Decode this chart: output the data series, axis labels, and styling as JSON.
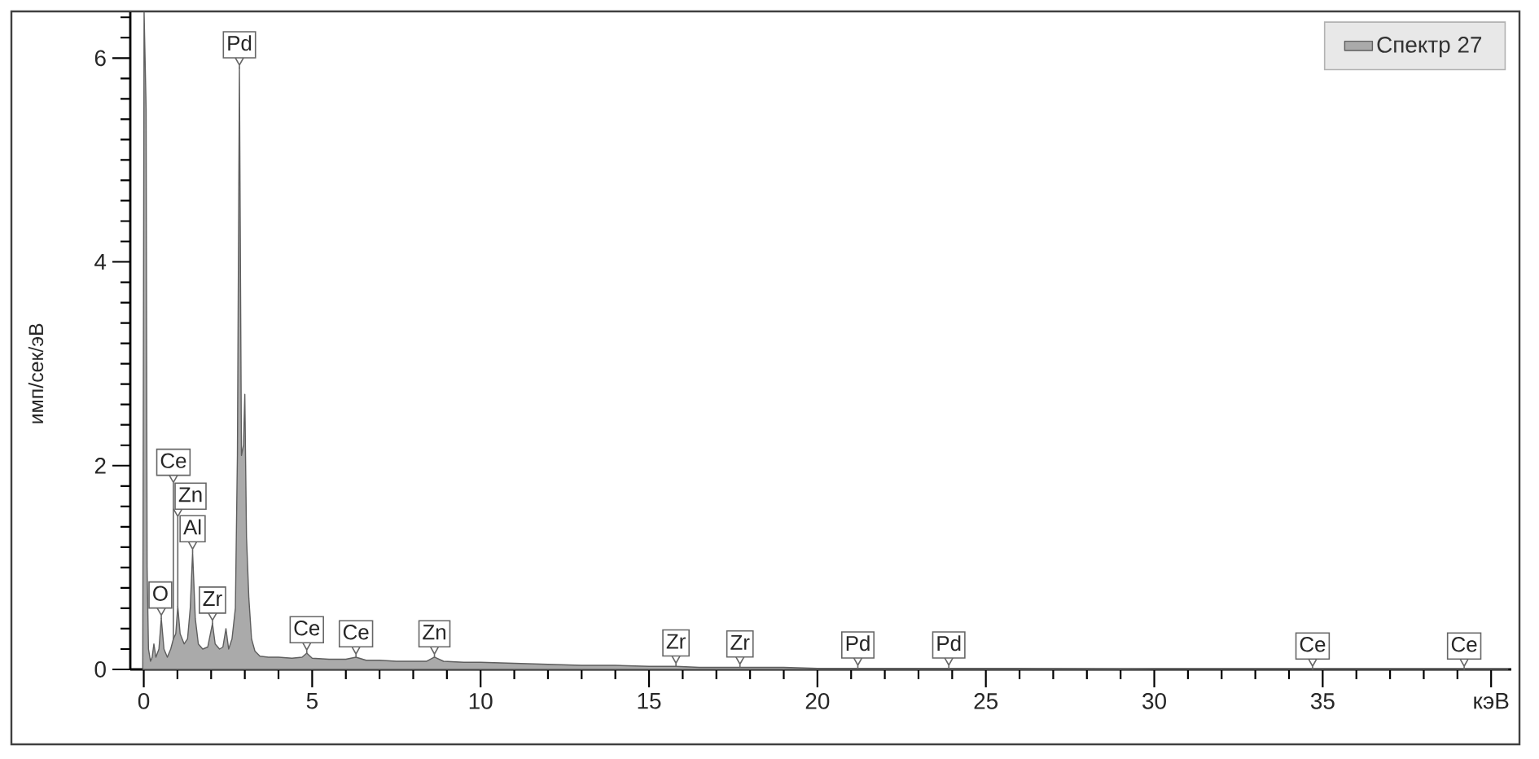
{
  "chart_data": {
    "type": "area",
    "ylabel": "имп/сек/эВ",
    "x": [
      -0.03,
      0.01,
      0.07,
      0.1,
      0.14,
      0.2,
      0.25,
      0.3,
      0.36,
      0.45,
      0.52,
      0.6,
      0.7,
      0.8,
      0.88,
      0.95,
      1.01,
      1.08,
      1.2,
      1.3,
      1.38,
      1.45,
      1.53,
      1.62,
      1.75,
      1.9,
      2.04,
      2.12,
      2.25,
      2.35,
      2.44,
      2.52,
      2.62,
      2.72,
      2.78,
      2.84,
      2.9,
      2.96,
      3.0,
      3.05,
      3.12,
      3.2,
      3.3,
      3.45,
      3.7,
      4.0,
      4.4,
      4.7,
      4.84,
      5.0,
      5.5,
      6.0,
      6.3,
      6.6,
      7.0,
      7.5,
      8.0,
      8.4,
      8.63,
      8.9,
      9.5,
      10,
      11,
      12,
      13,
      14,
      15,
      15.8,
      16.5,
      17.7,
      19,
      20,
      21.2,
      22,
      23.9,
      26,
      30,
      34.7,
      39.2,
      40.5
    ],
    "series": [
      {
        "name": "Спектр 27",
        "color": "#aaaaaa",
        "values": [
          0,
          6.45,
          5.5,
          1.0,
          0.2,
          0.08,
          0.12,
          0.25,
          0.12,
          0.2,
          0.5,
          0.2,
          0.12,
          0.2,
          0.3,
          0.35,
          0.62,
          0.35,
          0.25,
          0.3,
          0.6,
          1.15,
          0.5,
          0.25,
          0.2,
          0.22,
          0.45,
          0.25,
          0.2,
          0.22,
          0.4,
          0.2,
          0.3,
          0.6,
          2.1,
          5.9,
          2.1,
          2.2,
          2.7,
          1.3,
          0.7,
          0.3,
          0.18,
          0.13,
          0.12,
          0.12,
          0.11,
          0.12,
          0.16,
          0.11,
          0.1,
          0.1,
          0.12,
          0.09,
          0.09,
          0.08,
          0.08,
          0.08,
          0.12,
          0.08,
          0.07,
          0.07,
          0.06,
          0.05,
          0.04,
          0.04,
          0.03,
          0.03,
          0.02,
          0.02,
          0.02,
          0.01,
          0.01,
          0.01,
          0.01,
          0.01,
          0,
          0,
          0,
          0
        ]
      }
    ],
    "xlim": [
      -0.4,
      40.6
    ],
    "ylim": [
      0,
      6.45
    ],
    "xticks": [
      0,
      {
        "value": 1,
        "label": null
      },
      {
        "value": 2,
        "label": null
      },
      {
        "value": 3,
        "label": null
      },
      {
        "value": 4,
        "label": null
      },
      5,
      {
        "value": 6,
        "label": null
      },
      {
        "value": 7,
        "label": null
      },
      {
        "value": 8,
        "label": null
      },
      {
        "value": 9,
        "label": null
      },
      10,
      {
        "value": 11,
        "label": null
      },
      {
        "value": 12,
        "label": null
      },
      {
        "value": 13,
        "label": null
      },
      {
        "value": 14,
        "label": null
      },
      15,
      {
        "value": 16,
        "label": null
      },
      {
        "value": 17,
        "label": null
      },
      {
        "value": 18,
        "label": null
      },
      {
        "value": 19,
        "label": null
      },
      20,
      {
        "value": 21,
        "label": null
      },
      {
        "value": 22,
        "label": null
      },
      {
        "value": 23,
        "label": null
      },
      {
        "value": 24,
        "label": null
      },
      25,
      {
        "value": 26,
        "label": null
      },
      {
        "value": 27,
        "label": null
      },
      {
        "value": 28,
        "label": null
      },
      {
        "value": 29,
        "label": null
      },
      30,
      {
        "value": 31,
        "label": null
      },
      {
        "value": 32,
        "label": null
      },
      {
        "value": 33,
        "label": null
      },
      {
        "value": 34,
        "label": null
      },
      35,
      {
        "value": 36,
        "label": null
      },
      {
        "value": 37,
        "label": null
      },
      {
        "value": 38,
        "label": null
      },
      {
        "value": 39,
        "label": null
      },
      {
        "value": 40,
        "label": "кэВ"
      }
    ],
    "yticks": [
      0,
      {
        "value": 0.2,
        "label": null
      },
      {
        "value": 0.4,
        "label": null
      },
      {
        "value": 0.6,
        "label": null
      },
      {
        "value": 0.8,
        "label": null
      },
      {
        "value": 1.0,
        "label": null
      },
      {
        "value": 1.2,
        "label": null
      },
      {
        "value": 1.4,
        "label": null
      },
      {
        "value": 1.6,
        "label": null
      },
      {
        "value": 1.8,
        "label": null
      },
      2,
      {
        "value": 2.2,
        "label": null
      },
      {
        "value": 2.4,
        "label": null
      },
      {
        "value": 2.6,
        "label": null
      },
      {
        "value": 2.8,
        "label": null
      },
      {
        "value": 3.0,
        "label": null
      },
      {
        "value": 3.2,
        "label": null
      },
      {
        "value": 3.4,
        "label": null
      },
      {
        "value": 3.6,
        "label": null
      },
      {
        "value": 3.8,
        "label": null
      },
      4,
      {
        "value": 4.2,
        "label": null
      },
      {
        "value": 4.4,
        "label": null
      },
      {
        "value": 4.6,
        "label": null
      },
      {
        "value": 4.8,
        "label": null
      },
      {
        "value": 5.0,
        "label": null
      },
      {
        "value": 5.2,
        "label": null
      },
      {
        "value": 5.4,
        "label": null
      },
      {
        "value": 5.6,
        "label": null
      },
      {
        "value": 5.8,
        "label": null
      },
      6,
      {
        "value": 6.2,
        "label": null
      },
      {
        "value": 6.4,
        "label": null
      }
    ],
    "legend": "top right",
    "annotations": [
      {
        "text": "O",
        "x": 0.52,
        "y": 0.5
      },
      {
        "text": "Ce",
        "x": 0.88,
        "y": 0.3
      },
      {
        "text": "Zn",
        "x": 1.01,
        "y": 0.62
      },
      {
        "text": "Al",
        "x": 1.45,
        "y": 1.15
      },
      {
        "text": "Zr",
        "x": 2.04,
        "y": 0.45
      },
      {
        "text": "Pd",
        "x": 2.84,
        "y": 5.9
      },
      {
        "text": "Ce",
        "x": 4.84,
        "y": 0.16
      },
      {
        "text": "Ce",
        "x": 6.3,
        "y": 0.12
      },
      {
        "text": "Zn",
        "x": 8.63,
        "y": 0.12
      },
      {
        "text": "Zr",
        "x": 15.8,
        "y": 0.03
      },
      {
        "text": "Zr",
        "x": 17.7,
        "y": 0.02
      },
      {
        "text": "Pd",
        "x": 21.2,
        "y": 0.01
      },
      {
        "text": "Pd",
        "x": 23.9,
        "y": 0.01
      },
      {
        "text": "Ce",
        "x": 34.7,
        "y": 0
      },
      {
        "text": "Ce",
        "x": 39.2,
        "y": 0
      }
    ]
  }
}
